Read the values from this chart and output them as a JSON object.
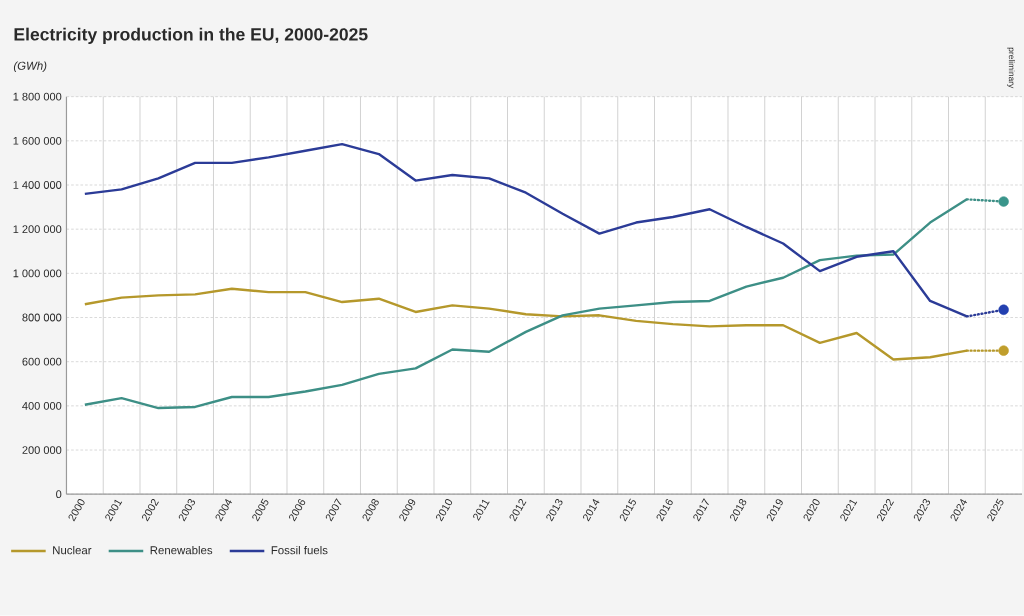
{
  "chart_data": {
    "type": "line",
    "title": "Electricity production in the EU, 2000-2025",
    "subtitle": "(GWh)",
    "annotations": [
      "preliminary"
    ],
    "categories": [
      "2000",
      "2001",
      "2002",
      "2003",
      "2004",
      "2005",
      "2006",
      "2007",
      "2008",
      "2009",
      "2010",
      "2011",
      "2012",
      "2013",
      "2014",
      "2015",
      "2016",
      "2017",
      "2018",
      "2019",
      "2020",
      "2021",
      "2022",
      "2023",
      "2024",
      "2025"
    ],
    "series": [
      {
        "name": "Nuclear",
        "color": "#b5982b",
        "values": [
          860000,
          890000,
          900000,
          905000,
          930000,
          915000,
          915000,
          870000,
          885000,
          825000,
          855000,
          840000,
          815000,
          805000,
          810000,
          785000,
          770000,
          760000,
          765000,
          765000,
          685000,
          730000,
          610000,
          620000,
          650000,
          null
        ]
      },
      {
        "name": "Renewables",
        "color": "#3d8f86",
        "values": [
          405000,
          435000,
          390000,
          395000,
          440000,
          440000,
          465000,
          495000,
          545000,
          570000,
          655000,
          645000,
          735000,
          810000,
          840000,
          855000,
          870000,
          875000,
          940000,
          980000,
          1060000,
          1080000,
          1085000,
          1230000,
          1335000,
          null
        ]
      },
      {
        "name": "Fossil fuels",
        "color": "#2b3b97",
        "values": [
          1360000,
          1380000,
          1430000,
          1500000,
          1500000,
          1525000,
          1555000,
          1585000,
          1540000,
          1420000,
          1445000,
          1430000,
          1365000,
          1270000,
          1180000,
          1230000,
          1255000,
          1290000,
          1210000,
          1135000,
          1010000,
          1075000,
          1100000,
          875000,
          805000,
          null
        ]
      },
      {
        "color": "#b5982b",
        "line_style": "dotted",
        "values": [
          null,
          null,
          null,
          null,
          null,
          null,
          null,
          null,
          null,
          null,
          null,
          null,
          null,
          null,
          null,
          null,
          null,
          null,
          null,
          null,
          null,
          null,
          null,
          null,
          650000,
          650000
        ]
      },
      {
        "color": "#3d8f86",
        "line_style": "dotted",
        "values": [
          null,
          null,
          null,
          null,
          null,
          null,
          null,
          null,
          null,
          null,
          null,
          null,
          null,
          null,
          null,
          null,
          null,
          null,
          null,
          null,
          null,
          null,
          null,
          null,
          1335000,
          1325000
        ]
      },
      {
        "color": "#2b3b97",
        "line_style": "dotted",
        "values": [
          null,
          null,
          null,
          null,
          null,
          null,
          null,
          null,
          null,
          null,
          null,
          null,
          null,
          null,
          null,
          null,
          null,
          null,
          null,
          null,
          null,
          null,
          null,
          null,
          805000,
          835000
        ]
      },
      {
        "type": "scatter",
        "marker": "circle",
        "color": "#c09e2c",
        "values": [
          null,
          null,
          null,
          null,
          null,
          null,
          null,
          null,
          null,
          null,
          null,
          null,
          null,
          null,
          null,
          null,
          null,
          null,
          null,
          null,
          null,
          null,
          null,
          null,
          null,
          650000
        ]
      },
      {
        "type": "scatter",
        "marker": "circle",
        "color": "#3a958b",
        "values": [
          null,
          null,
          null,
          null,
          null,
          null,
          null,
          null,
          null,
          null,
          null,
          null,
          null,
          null,
          null,
          null,
          null,
          null,
          null,
          null,
          null,
          null,
          null,
          null,
          null,
          1325000
        ]
      },
      {
        "type": "scatter",
        "marker": "circle",
        "color": "#2340b0",
        "values": [
          null,
          null,
          null,
          null,
          null,
          null,
          null,
          null,
          null,
          null,
          null,
          null,
          null,
          null,
          null,
          null,
          null,
          null,
          null,
          null,
          null,
          null,
          null,
          null,
          null,
          835000
        ]
      }
    ],
    "ylim": [
      0,
      1800000
    ],
    "yticks": [
      0,
      {
        "value": 200000,
        "label": "200 000"
      },
      {
        "value": 400000,
        "label": "400 000"
      },
      {
        "value": 600000,
        "label": "600 000"
      },
      {
        "value": 800000,
        "label": "800 000"
      },
      {
        "value": 1000000,
        "label": "1 000 000"
      },
      {
        "value": 1200000,
        "label": "1 200 000"
      },
      {
        "value": 1400000,
        "label": "1 400 000"
      },
      {
        "value": 1600000,
        "label": "1 600 000"
      },
      {
        "value": 1800000,
        "label": "1 800 000"
      }
    ],
    "grid": true,
    "legend": "bottom"
  }
}
